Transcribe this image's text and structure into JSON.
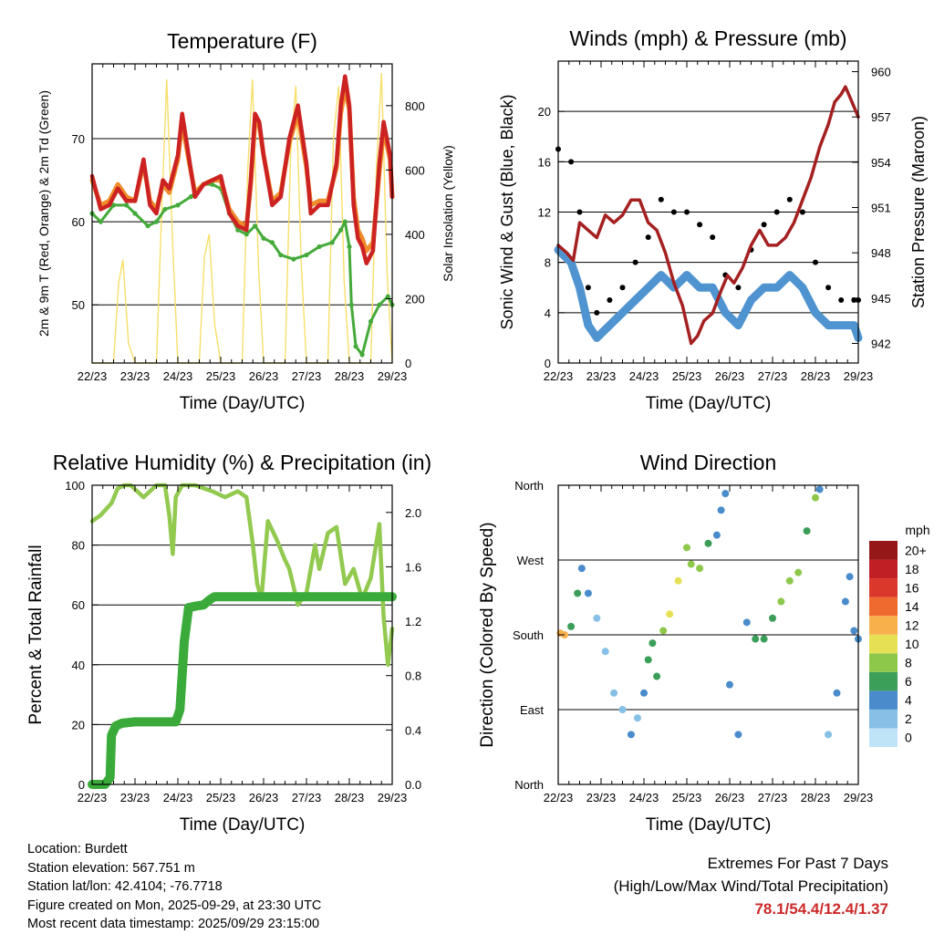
{
  "chart_data": [
    {
      "type": "line",
      "title": "Temperature (F)",
      "xlabel": "Time (Day/UTC)",
      "ylabel": "2m & 9m T (Red, Orange) & 2m Td (Green)",
      "y2label": "Solar Insolation (Yellow)",
      "x_ticks": [
        "22/23",
        "23/23",
        "24/23",
        "25/23",
        "26/23",
        "27/23",
        "28/23",
        "29/23"
      ],
      "xlim": [
        0,
        7
      ],
      "ylim": [
        43,
        79
      ],
      "y_ticks": [
        50,
        60,
        70
      ],
      "y2lim": [
        0,
        930
      ],
      "y2_ticks": [
        0,
        200,
        400,
        600,
        800
      ],
      "grid_y": [
        50,
        60,
        70
      ],
      "series": [
        {
          "name": "2m T",
          "color": "#cc2222",
          "x": [
            0,
            0.2,
            0.4,
            0.6,
            0.8,
            1.0,
            1.2,
            1.35,
            1.5,
            1.65,
            1.8,
            2.0,
            2.1,
            2.25,
            2.4,
            2.6,
            2.8,
            3.0,
            3.2,
            3.4,
            3.6,
            3.7,
            3.8,
            3.9,
            4.0,
            4.2,
            4.4,
            4.6,
            4.8,
            5.0,
            5.1,
            5.3,
            5.5,
            5.7,
            5.8,
            5.9,
            6.0,
            6.1,
            6.2,
            6.3,
            6.4,
            6.55,
            6.7,
            6.8,
            6.95,
            7.0
          ],
          "y": [
            65.5,
            61.5,
            62,
            64,
            62.5,
            62.5,
            67.5,
            62,
            61,
            65,
            64,
            68,
            73,
            68,
            63,
            64.5,
            65,
            65.5,
            61,
            59.5,
            59,
            65,
            73,
            72,
            68,
            62,
            63,
            70,
            74,
            67,
            61,
            62,
            62,
            67,
            74,
            77.5,
            74,
            62,
            58,
            57,
            55,
            56.5,
            67,
            72,
            68,
            63
          ]
        },
        {
          "name": "9m T",
          "color": "#f08c2a",
          "x": [
            0,
            0.2,
            0.4,
            0.6,
            0.8,
            1.0,
            1.2,
            1.35,
            1.5,
            1.65,
            1.8,
            2.0,
            2.1,
            2.25,
            2.4,
            2.6,
            2.8,
            3.0,
            3.2,
            3.4,
            3.6,
            3.7,
            3.8,
            3.9,
            4.0,
            4.2,
            4.4,
            4.6,
            4.8,
            5.0,
            5.1,
            5.3,
            5.5,
            5.7,
            5.8,
            5.9,
            6.0,
            6.1,
            6.2,
            6.3,
            6.4,
            6.55,
            6.7,
            6.8,
            6.95,
            7.0
          ],
          "y": [
            65,
            62,
            62.5,
            64.5,
            63,
            62.5,
            67,
            62.5,
            61.5,
            64.5,
            63.5,
            67.5,
            72,
            67.5,
            63.5,
            64.5,
            65,
            65,
            61.5,
            60,
            59.5,
            64.5,
            72,
            71.5,
            68,
            62.5,
            63.5,
            69.5,
            73,
            66.5,
            62,
            62.5,
            62.5,
            66.5,
            73,
            76,
            73.5,
            63,
            59,
            58,
            56.5,
            57.5,
            66,
            71,
            67.5,
            63
          ]
        },
        {
          "name": "2m Td",
          "color": "#44aa3a",
          "x": [
            0,
            0.2,
            0.5,
            0.8,
            1.0,
            1.3,
            1.5,
            1.7,
            2.0,
            2.3,
            2.6,
            2.8,
            3.0,
            3.2,
            3.4,
            3.6,
            3.8,
            4.0,
            4.2,
            4.4,
            4.7,
            5.0,
            5.3,
            5.6,
            5.8,
            5.9,
            6.0,
            6.05,
            6.15,
            6.3,
            6.5,
            6.7,
            6.9,
            7.0
          ],
          "y": [
            61,
            60,
            62,
            62,
            61,
            59.5,
            60,
            61.5,
            62,
            63,
            64.5,
            64.5,
            64,
            61,
            59,
            58.5,
            59.5,
            58,
            57.5,
            56,
            55.5,
            56,
            57,
            57.5,
            59,
            60,
            57,
            50,
            45,
            44,
            48,
            50,
            51,
            50
          ]
        },
        {
          "name": "Solar Insolation",
          "color": "#f7df6a",
          "axis": "y2",
          "x": [
            0,
            0.5,
            0.62,
            0.72,
            0.85,
            1.0,
            1.5,
            1.63,
            1.74,
            1.87,
            2.0,
            2.5,
            2.62,
            2.73,
            2.86,
            3.0,
            3.5,
            3.63,
            3.74,
            3.88,
            4.0,
            4.5,
            4.63,
            4.75,
            4.88,
            5.0,
            5.5,
            5.63,
            5.75,
            5.88,
            6.0,
            6.5,
            6.63,
            6.75,
            6.88,
            7.0
          ],
          "y": [
            0,
            0,
            250,
            320,
            60,
            0,
            0,
            500,
            880,
            400,
            0,
            0,
            330,
            400,
            120,
            0,
            0,
            600,
            880,
            300,
            0,
            0,
            650,
            860,
            300,
            0,
            0,
            700,
            860,
            250,
            0,
            0,
            600,
            900,
            280,
            0
          ]
        }
      ]
    },
    {
      "type": "scatter",
      "title": "Winds (mph) & Pressure (mb)",
      "xlabel": "Time (Day/UTC)",
      "ylabel": "Sonic Wind & Gust (Blue, Black)",
      "y2label": "Station Pressure (Maroon)",
      "x_ticks": [
        "22/23",
        "23/23",
        "24/23",
        "25/23",
        "26/23",
        "27/23",
        "28/23",
        "29/23"
      ],
      "xlim": [
        0,
        7
      ],
      "ylim": [
        0,
        24
      ],
      "y_ticks": [
        0,
        4,
        8,
        12,
        16,
        20
      ],
      "y2lim": [
        940.7,
        960.7
      ],
      "y2_ticks": [
        942,
        945,
        948,
        951,
        954,
        957,
        960
      ],
      "grid_y": [
        4,
        8,
        12,
        16,
        20
      ],
      "series": [
        {
          "name": "Wind",
          "color": "#4f94d0",
          "x": [
            0,
            0.3,
            0.5,
            0.7,
            0.9,
            1.2,
            1.5,
            1.8,
            2.1,
            2.4,
            2.7,
            3.0,
            3.3,
            3.6,
            3.9,
            4.2,
            4.5,
            4.8,
            5.1,
            5.4,
            5.7,
            6.0,
            6.3,
            6.6,
            6.9,
            7.0
          ],
          "y": [
            9,
            8,
            6,
            3,
            2,
            3,
            4,
            5,
            6,
            7,
            6,
            7,
            6,
            6,
            4,
            3,
            5,
            6,
            6,
            7,
            6,
            4,
            3,
            3,
            3,
            2
          ]
        },
        {
          "name": "Gust",
          "color": "#000000",
          "x": [
            0,
            0.3,
            0.5,
            0.7,
            0.9,
            1.2,
            1.5,
            1.8,
            2.1,
            2.4,
            2.7,
            3.0,
            3.3,
            3.6,
            3.9,
            4.2,
            4.5,
            4.8,
            5.1,
            5.4,
            5.7,
            6.0,
            6.3,
            6.6,
            6.9,
            7.0
          ],
          "y": [
            17,
            16,
            12,
            6,
            4,
            5,
            6,
            8,
            10,
            13,
            12,
            12,
            11,
            10,
            7,
            6,
            9,
            11,
            12,
            13,
            12,
            8,
            6,
            5,
            5,
            5
          ]
        },
        {
          "name": "Station Pressure",
          "color": "#a52020",
          "axis": "y2",
          "x": [
            0,
            0.2,
            0.35,
            0.5,
            0.7,
            0.9,
            1.1,
            1.3,
            1.5,
            1.7,
            1.9,
            2.1,
            2.3,
            2.5,
            2.7,
            2.9,
            3.1,
            3.25,
            3.4,
            3.6,
            3.8,
            3.95,
            4.1,
            4.3,
            4.5,
            4.7,
            4.9,
            5.1,
            5.3,
            5.5,
            5.7,
            5.9,
            6.1,
            6.3,
            6.45,
            6.6,
            6.7,
            6.85,
            7.0
          ],
          "y": [
            948.5,
            948,
            947.5,
            950,
            949.5,
            949,
            950.5,
            950,
            950.5,
            951.5,
            951.5,
            950,
            949.5,
            948,
            946,
            944.5,
            942,
            942.5,
            943.5,
            944,
            945.5,
            946.5,
            946,
            947,
            948.5,
            949.5,
            948.5,
            948.5,
            949,
            950,
            951.5,
            953,
            955,
            956.5,
            958,
            958.5,
            959,
            958,
            957
          ]
        }
      ]
    },
    {
      "type": "line",
      "title": "Relative Humidity (%) & Precipitation (in)",
      "xlabel": "Time (Day/UTC)",
      "ylabel": "Percent & Total Rainfall",
      "x_ticks": [
        "22/23",
        "23/23",
        "24/23",
        "25/23",
        "26/23",
        "27/23",
        "28/23",
        "29/23"
      ],
      "xlim": [
        0,
        7
      ],
      "ylim": [
        0,
        100
      ],
      "y_ticks": [
        0,
        20,
        40,
        60,
        80,
        100
      ],
      "y2lim": [
        0,
        2.2
      ],
      "y2_ticks": [
        0.0,
        0.4,
        0.8,
        1.2,
        1.6,
        2.0
      ],
      "grid_y": [
        20,
        40,
        60,
        80
      ],
      "series": [
        {
          "name": "Relative Humidity",
          "color": "#92c94f",
          "x": [
            0,
            0.2,
            0.45,
            0.6,
            0.75,
            0.9,
            1.2,
            1.5,
            1.7,
            1.8,
            1.88,
            1.95,
            2.1,
            2.4,
            2.8,
            3.1,
            3.4,
            3.6,
            3.75,
            3.85,
            3.95,
            4.1,
            4.3,
            4.5,
            4.6,
            4.8,
            5.0,
            5.2,
            5.3,
            5.5,
            5.7,
            5.9,
            6.1,
            6.3,
            6.5,
            6.7,
            6.8,
            6.9,
            7.0
          ],
          "y": [
            88,
            90,
            94,
            99,
            100,
            100,
            96,
            100,
            100,
            90,
            77,
            96,
            100,
            100,
            98,
            96,
            98,
            96,
            80,
            67,
            62,
            88,
            82,
            75,
            72,
            60,
            64,
            80,
            72,
            84,
            86,
            67,
            72,
            62,
            69,
            87,
            56,
            40,
            52
          ]
        },
        {
          "name": "Total Precipitation",
          "color": "#3aab3a",
          "axis": "y2",
          "x": [
            0,
            0.3,
            0.42,
            0.45,
            0.55,
            0.7,
            1.0,
            1.5,
            1.95,
            2.05,
            2.15,
            2.25,
            2.4,
            2.6,
            2.75,
            2.85,
            3.0,
            4.0,
            5.0,
            6.0,
            7.0
          ],
          "y": [
            0.0,
            0.0,
            0.05,
            0.36,
            0.43,
            0.45,
            0.46,
            0.46,
            0.46,
            0.55,
            1.05,
            1.3,
            1.31,
            1.32,
            1.36,
            1.38,
            1.38,
            1.38,
            1.38,
            1.38,
            1.38
          ]
        }
      ]
    },
    {
      "type": "scatter",
      "title": "Wind Direction",
      "xlabel": "Time (Day/UTC)",
      "ylabel": "Direction (Colored By Speed)",
      "x_ticks": [
        "22/23",
        "23/23",
        "24/23",
        "25/23",
        "26/23",
        "27/23",
        "28/23",
        "29/23"
      ],
      "xlim": [
        0,
        7
      ],
      "ylim": [
        0,
        360
      ],
      "y_tick_labels": [
        "North",
        "East",
        "South",
        "West",
        "North"
      ],
      "grid_y": [
        90,
        180,
        270
      ],
      "colorbar_title": "mph",
      "colorbar_labels": [
        "0",
        "2",
        "4",
        "6",
        "8",
        "10",
        "12",
        "14",
        "16",
        "18",
        "20+"
      ],
      "colorbar_colors": [
        "#bfe4f7",
        "#86c0e6",
        "#4a8ccb",
        "#3b9e59",
        "#8ec84a",
        "#e6e055",
        "#f8b04c",
        "#ef6a2f",
        "#d9382b",
        "#c02025",
        "#961717"
      ],
      "series": [
        {
          "name": "Direction",
          "x": [
            0.05,
            0.15,
            0.3,
            0.45,
            0.55,
            0.7,
            0.9,
            1.1,
            1.3,
            1.5,
            1.7,
            1.85,
            2.0,
            2.1,
            2.2,
            2.3,
            2.45,
            2.6,
            2.8,
            3.0,
            3.1,
            3.3,
            3.5,
            3.7,
            3.8,
            3.9,
            4.0,
            4.2,
            4.4,
            4.6,
            4.8,
            5.0,
            5.2,
            5.4,
            5.6,
            5.8,
            6.0,
            6.1,
            6.3,
            6.5,
            6.7,
            6.8,
            6.9,
            7.0
          ],
          "y": [
            182,
            180,
            190,
            230,
            260,
            230,
            200,
            160,
            110,
            90,
            60,
            80,
            110,
            150,
            170,
            130,
            185,
            205,
            245,
            285,
            265,
            260,
            290,
            300,
            330,
            350,
            120,
            60,
            195,
            175,
            175,
            200,
            220,
            245,
            255,
            305,
            345,
            355,
            60,
            110,
            220,
            250,
            185,
            175
          ],
          "speeds": [
            12,
            11,
            6,
            5,
            4,
            3,
            2,
            2,
            1,
            2,
            3,
            2,
            4,
            6,
            5,
            5,
            8,
            9,
            10,
            7,
            8,
            7,
            5,
            4,
            4,
            4,
            3,
            3,
            4,
            5,
            5,
            6,
            7,
            8,
            8,
            6,
            8,
            4,
            2,
            3,
            4,
            4,
            3,
            3
          ]
        }
      ]
    }
  ],
  "footer": {
    "location": "Location: Burdett",
    "elevation": "Station elevation: 567.751 m",
    "latlon": "Station lat/lon: 42.4104; -76.7718",
    "created": "Figure created on Mon, 2025-09-29, at 23:30 UTC",
    "recent": "Most recent data timestamp: 2025/09/29 23:15:00"
  },
  "extremes": {
    "title": "Extremes For Past 7 Days",
    "subtitle": "(High/Low/Max Wind/Total Precipitation)",
    "values": "78.1/54.4/12.4/1.37",
    "color": "#cc2a2a"
  }
}
